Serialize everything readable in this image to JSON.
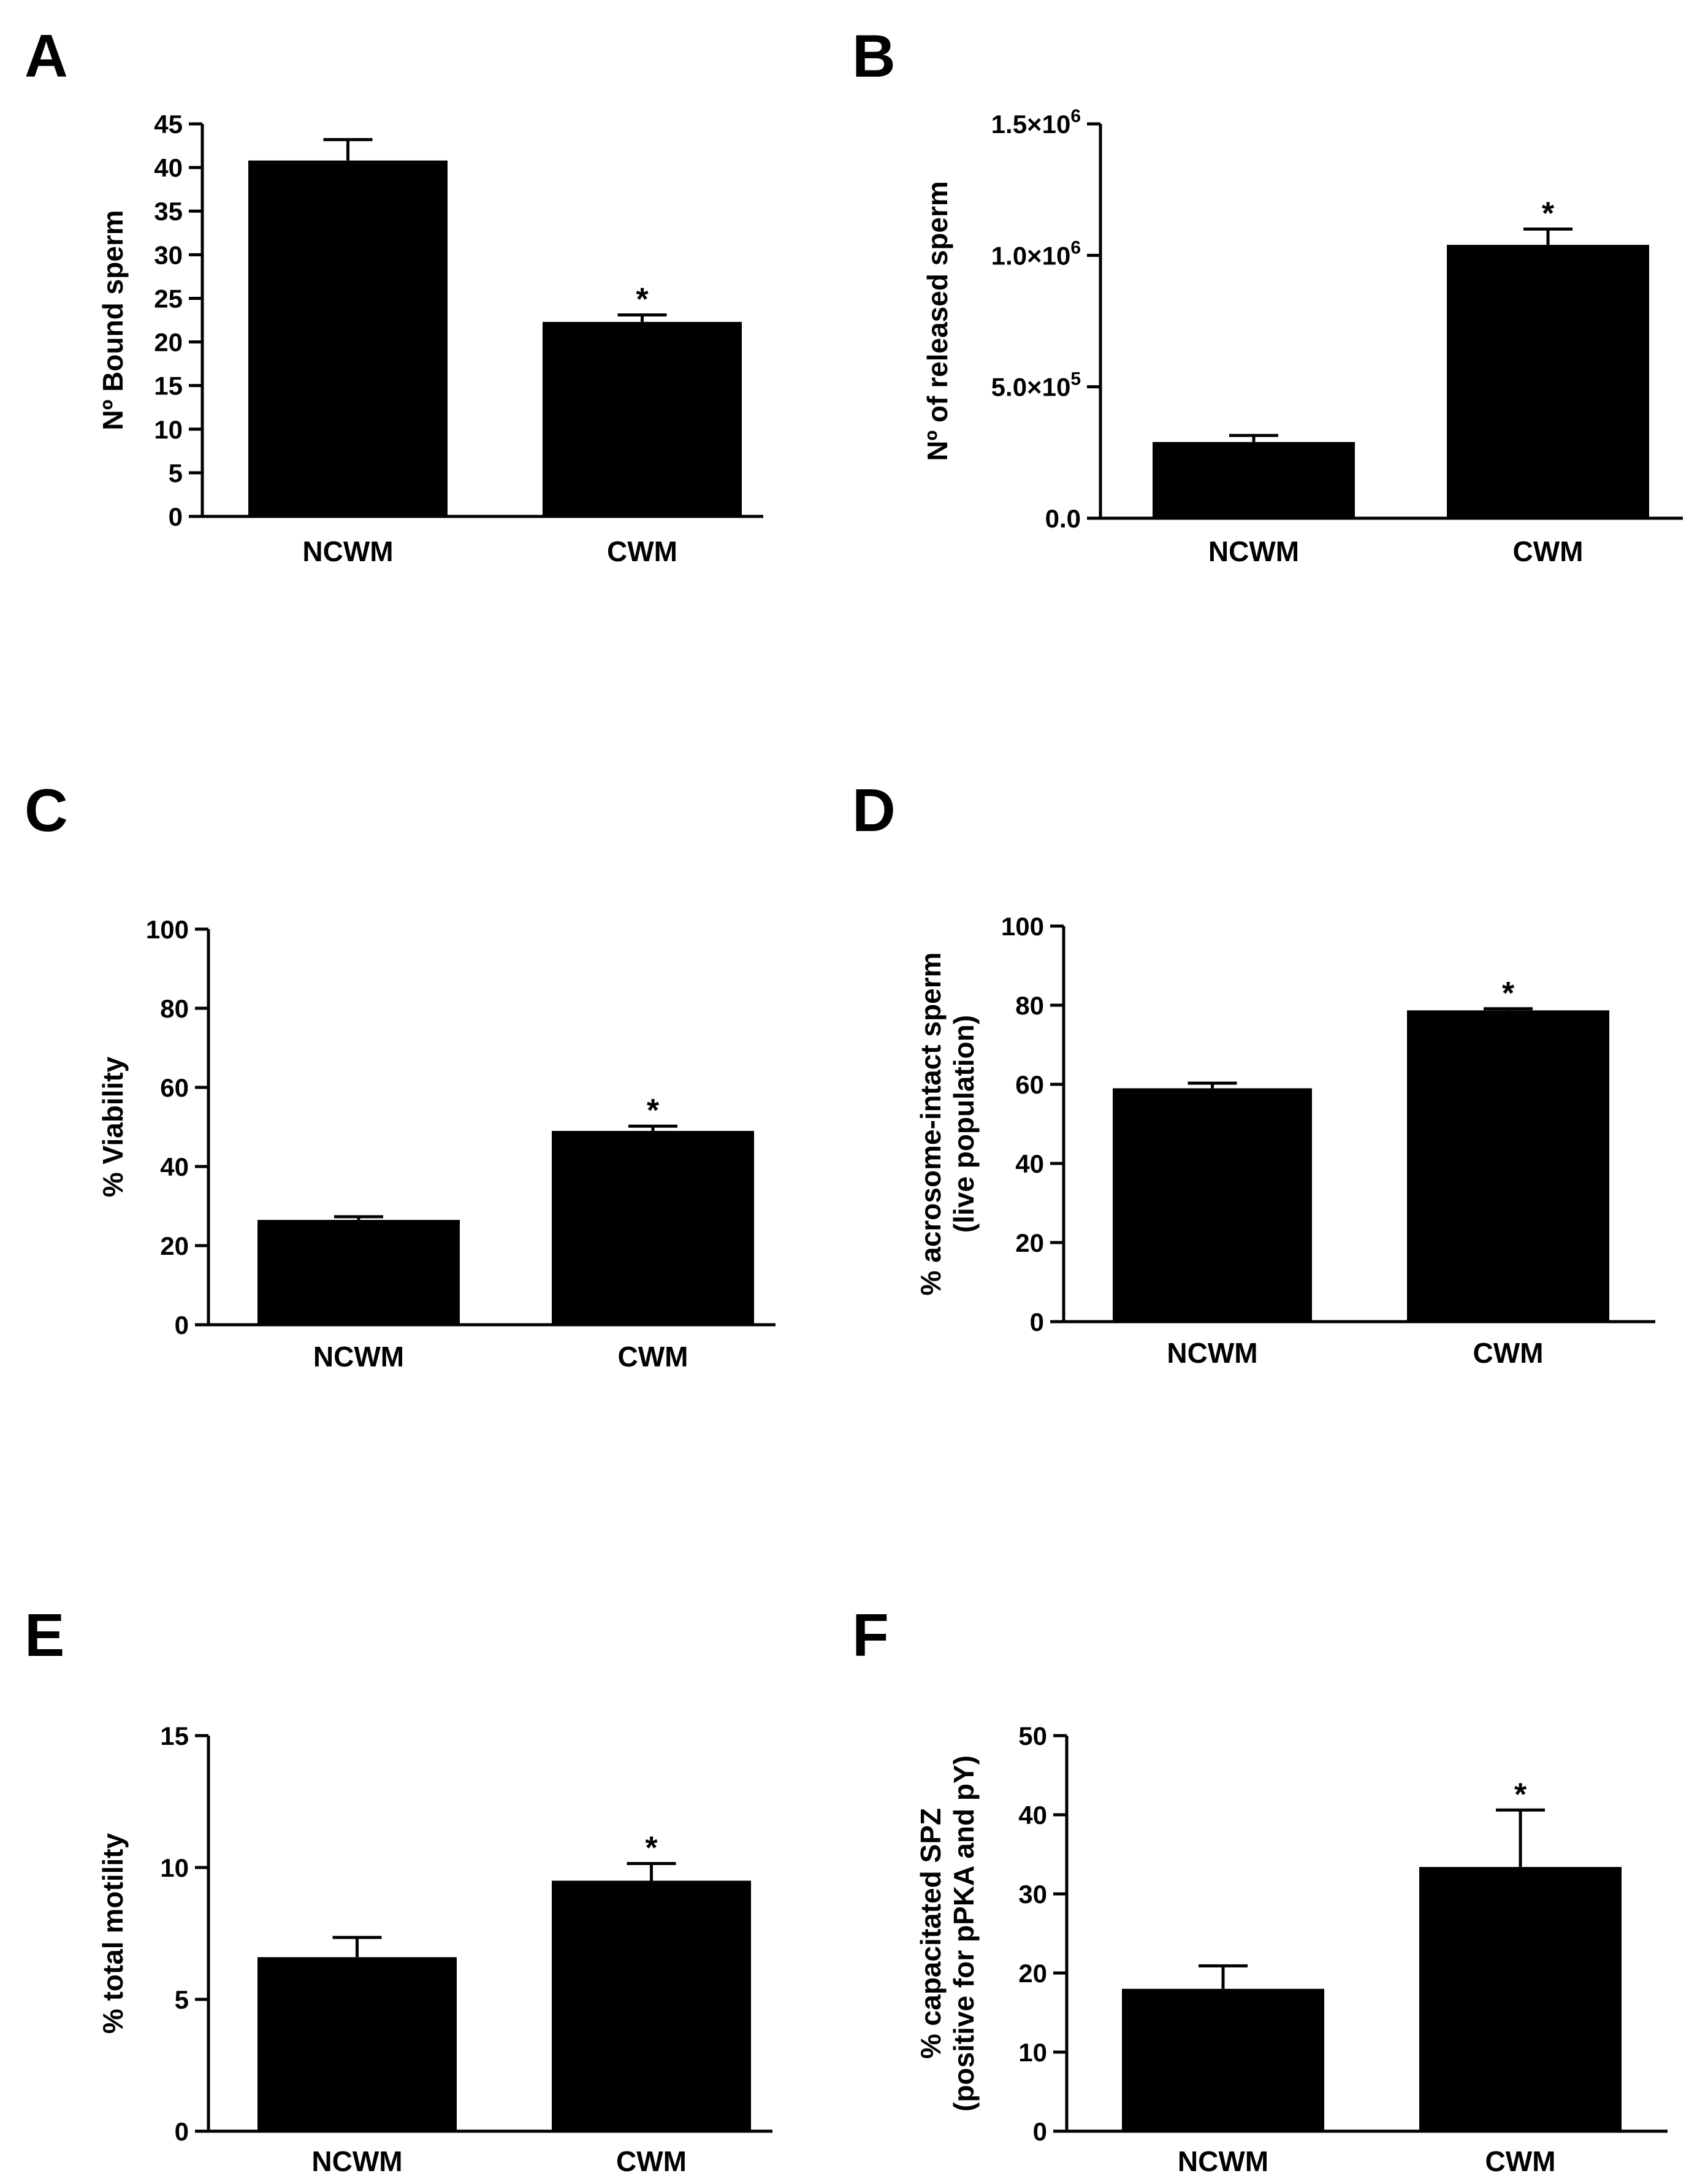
{
  "chart_data": [
    {
      "panel": "A",
      "type": "bar",
      "categories": [
        "NCWM",
        "CWM"
      ],
      "values": [
        40.8,
        22.3
      ],
      "errors": [
        2.4,
        0.8
      ],
      "significance": [
        "",
        "*"
      ],
      "ylabel": "Nº Bound sperm",
      "ylabel_lines": [
        "Nº Bound sperm"
      ],
      "ylim": [
        0,
        45
      ],
      "yticks": [
        0,
        5,
        10,
        15,
        20,
        25,
        30,
        35,
        40,
        45
      ],
      "ytick_labels": [
        "0",
        "5",
        "10",
        "15",
        "20",
        "25",
        "30",
        "35",
        "40",
        "45"
      ],
      "color": "#000000"
    },
    {
      "panel": "B",
      "type": "bar",
      "categories": [
        "NCWM",
        "CWM"
      ],
      "values": [
        290000,
        1040000
      ],
      "errors": [
        25000,
        60000
      ],
      "significance": [
        "",
        "*"
      ],
      "ylabel": "Nº of released sperm",
      "ylabel_lines": [
        "Nº of released sperm"
      ],
      "ylim": [
        0,
        1500000
      ],
      "yticks": [
        0,
        500000,
        1000000,
        1500000
      ],
      "ytick_labels": [
        {
          "base": "0.0",
          "exp": ""
        },
        {
          "base": "5.0×10",
          "exp": "5"
        },
        {
          "base": "1.0×10",
          "exp": "6"
        },
        {
          "base": "1.5×10",
          "exp": "6"
        }
      ],
      "color": "#000000"
    },
    {
      "panel": "C",
      "type": "bar",
      "categories": [
        "NCWM",
        "CWM"
      ],
      "values": [
        26.5,
        49
      ],
      "errors": [
        0.8,
        1.2
      ],
      "significance": [
        "",
        "*"
      ],
      "ylabel": "% Viability",
      "ylabel_lines": [
        "% Viability"
      ],
      "ylim": [
        0,
        100
      ],
      "yticks": [
        0,
        20,
        40,
        60,
        80,
        100
      ],
      "ytick_labels": [
        "0",
        "20",
        "40",
        "60",
        "80",
        "100"
      ],
      "color": "#000000"
    },
    {
      "panel": "D",
      "type": "bar",
      "categories": [
        "NCWM",
        "CWM"
      ],
      "values": [
        59,
        78.7
      ],
      "errors": [
        1.3,
        0.4
      ],
      "significance": [
        "",
        "*"
      ],
      "ylabel": "% acrosome-intact sperm (live population)",
      "ylabel_lines": [
        "% acrosome-intact sperm",
        "(live population)"
      ],
      "ylim": [
        0,
        100
      ],
      "yticks": [
        0,
        20,
        40,
        60,
        80,
        100
      ],
      "ytick_labels": [
        "0",
        "20",
        "40",
        "60",
        "80",
        "100"
      ],
      "color": "#000000"
    },
    {
      "panel": "E",
      "type": "bar",
      "categories": [
        "NCWM",
        "CWM"
      ],
      "values": [
        6.6,
        9.5
      ],
      "errors": [
        0.75,
        0.65
      ],
      "significance": [
        "",
        "*"
      ],
      "ylabel": "% total motility",
      "ylabel_lines": [
        "% total motility"
      ],
      "ylim": [
        0,
        15
      ],
      "yticks": [
        0,
        5,
        10,
        15
      ],
      "ytick_labels": [
        "0",
        "5",
        "10",
        "15"
      ],
      "color": "#000000"
    },
    {
      "panel": "F",
      "type": "bar",
      "categories": [
        "NCWM",
        "CWM"
      ],
      "values": [
        18,
        33.4
      ],
      "errors": [
        2.9,
        7.2
      ],
      "significance": [
        "",
        "*"
      ],
      "ylabel": "% capacitated SPZ (positive for pPKA and pY)",
      "ylabel_lines": [
        "% capacitated SPZ",
        "(positive for pPKA and pY)"
      ],
      "ylim": [
        0,
        50
      ],
      "yticks": [
        0,
        10,
        20,
        30,
        40,
        50
      ],
      "ytick_labels": [
        "0",
        "10",
        "20",
        "30",
        "40",
        "50"
      ],
      "color": "#000000"
    }
  ]
}
